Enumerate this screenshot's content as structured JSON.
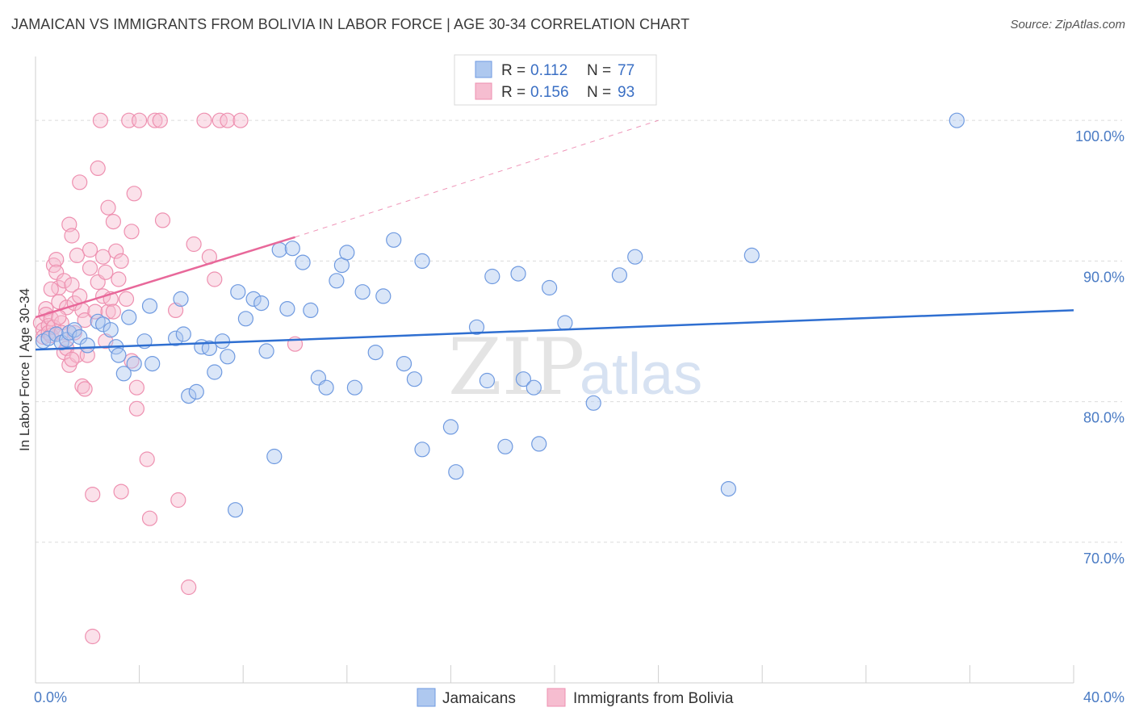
{
  "title": "JAMAICAN VS IMMIGRANTS FROM BOLIVIA IN LABOR FORCE | AGE 30-34 CORRELATION CHART",
  "source": "Source: ZipAtlas.com",
  "colors": {
    "blue_fill": "#aec8ef",
    "blue_stroke": "#6f9ae0",
    "blue_line": "#2f6fd1",
    "pink_fill": "#f6bdd0",
    "pink_stroke": "#ee90b0",
    "pink_line": "#e8689a",
    "grid": "#dcdcdc",
    "tick_text": "#4a7bc4"
  },
  "legend": {
    "row1": {
      "r_label": "R =",
      "r_value": "0.112",
      "n_label": "N =",
      "n_value": "77"
    },
    "row2": {
      "r_label": "R =",
      "r_value": "0.156",
      "n_label": "N =",
      "n_value": "93"
    }
  },
  "watermark": {
    "zip": "ZIP",
    "atlas": "atlas"
  },
  "chart_data": {
    "type": "scatter",
    "title": "JAMAICAN VS IMMIGRANTS FROM BOLIVIA IN LABOR FORCE | AGE 30-34 CORRELATION CHART",
    "xlabel": "",
    "ylabel": "In Labor Force | Age 30-34",
    "xlim": [
      0,
      40
    ],
    "ylim": [
      60,
      104
    ],
    "x_tick_labels": [
      "0.0%",
      "40.0%"
    ],
    "y_ticks": [
      70,
      80,
      90,
      100
    ],
    "y_tick_labels": [
      "70.0%",
      "80.0%",
      "90.0%",
      "100.0%"
    ],
    "grid": true,
    "legend_position": "top-center",
    "series": [
      {
        "name": "Jamaicans",
        "color": "blue",
        "R": 0.112,
        "N": 77,
        "trend": {
          "x": [
            0,
            40
          ],
          "y": [
            83.7,
            86.5
          ],
          "dashed_extension": false
        },
        "points": [
          [
            0.3,
            84.3
          ],
          [
            0.5,
            84.5
          ],
          [
            0.8,
            84.8
          ],
          [
            1.0,
            84.2
          ],
          [
            1.2,
            84.4
          ],
          [
            1.3,
            84.9
          ],
          [
            1.5,
            85.1
          ],
          [
            1.7,
            84.6
          ],
          [
            2.0,
            84.0
          ],
          [
            2.4,
            85.7
          ],
          [
            2.6,
            85.5
          ],
          [
            2.9,
            85.1
          ],
          [
            3.1,
            83.9
          ],
          [
            3.2,
            83.3
          ],
          [
            3.4,
            82.0
          ],
          [
            3.6,
            86.0
          ],
          [
            3.8,
            82.7
          ],
          [
            4.2,
            84.3
          ],
          [
            4.4,
            86.8
          ],
          [
            4.5,
            82.7
          ],
          [
            5.4,
            84.5
          ],
          [
            5.6,
            87.3
          ],
          [
            5.7,
            84.8
          ],
          [
            5.9,
            80.4
          ],
          [
            6.2,
            80.7
          ],
          [
            6.4,
            83.9
          ],
          [
            6.7,
            83.8
          ],
          [
            6.9,
            82.1
          ],
          [
            7.2,
            84.3
          ],
          [
            7.4,
            83.2
          ],
          [
            7.7,
            72.3
          ],
          [
            7.8,
            87.8
          ],
          [
            8.1,
            85.9
          ],
          [
            8.4,
            87.3
          ],
          [
            8.7,
            87.0
          ],
          [
            8.9,
            83.6
          ],
          [
            9.2,
            76.1
          ],
          [
            9.4,
            90.8
          ],
          [
            9.7,
            86.6
          ],
          [
            9.9,
            90.9
          ],
          [
            10.3,
            89.9
          ],
          [
            10.6,
            86.5
          ],
          [
            10.9,
            81.7
          ],
          [
            11.2,
            81.0
          ],
          [
            11.6,
            88.6
          ],
          [
            11.8,
            89.7
          ],
          [
            12.0,
            90.6
          ],
          [
            12.3,
            81.0
          ],
          [
            12.6,
            87.8
          ],
          [
            13.1,
            83.5
          ],
          [
            13.4,
            87.5
          ],
          [
            13.8,
            91.5
          ],
          [
            14.2,
            82.7
          ],
          [
            14.6,
            81.6
          ],
          [
            14.9,
            76.6
          ],
          [
            14.9,
            90.0
          ],
          [
            16.0,
            78.2
          ],
          [
            16.2,
            75.0
          ],
          [
            17.0,
            85.3
          ],
          [
            17.4,
            81.5
          ],
          [
            17.6,
            88.9
          ],
          [
            18.1,
            76.8
          ],
          [
            18.6,
            89.1
          ],
          [
            18.8,
            81.6
          ],
          [
            19.2,
            81.0
          ],
          [
            19.4,
            77.0
          ],
          [
            19.8,
            88.1
          ],
          [
            20.4,
            85.6
          ],
          [
            21.5,
            79.9
          ],
          [
            22.5,
            89.0
          ],
          [
            23.1,
            90.3
          ],
          [
            26.7,
            73.8
          ],
          [
            27.6,
            90.4
          ],
          [
            35.5,
            100.0
          ]
        ]
      },
      {
        "name": "Immigrants from Bolivia",
        "color": "pink",
        "R": 0.156,
        "N": 93,
        "trend": {
          "x": [
            0,
            10
          ],
          "y": [
            86.0,
            91.7
          ],
          "dashed_extension": true,
          "dashed_to": [
            24,
            100.0
          ]
        },
        "points": [
          [
            0.2,
            85.6
          ],
          [
            0.3,
            85.1
          ],
          [
            0.3,
            84.6
          ],
          [
            0.4,
            86.6
          ],
          [
            0.4,
            86.2
          ],
          [
            0.5,
            85.4
          ],
          [
            0.5,
            84.9
          ],
          [
            0.6,
            85.9
          ],
          [
            0.6,
            84.7
          ],
          [
            0.7,
            85.3
          ],
          [
            0.7,
            89.7
          ],
          [
            0.8,
            90.1
          ],
          [
            0.8,
            89.2
          ],
          [
            0.9,
            88.1
          ],
          [
            0.9,
            87.1
          ],
          [
            1.0,
            85.6
          ],
          [
            1.0,
            84.9
          ],
          [
            1.1,
            88.6
          ],
          [
            1.1,
            83.5
          ],
          [
            1.2,
            86.7
          ],
          [
            1.2,
            83.8
          ],
          [
            1.3,
            82.6
          ],
          [
            1.3,
            92.6
          ],
          [
            1.4,
            91.8
          ],
          [
            1.4,
            88.3
          ],
          [
            1.5,
            87.0
          ],
          [
            1.5,
            84.9
          ],
          [
            1.6,
            83.3
          ],
          [
            1.6,
            90.4
          ],
          [
            1.7,
            95.6
          ],
          [
            1.7,
            87.5
          ],
          [
            1.8,
            86.5
          ],
          [
            1.8,
            81.1
          ],
          [
            1.9,
            85.8
          ],
          [
            1.9,
            80.9
          ],
          [
            2.0,
            83.3
          ],
          [
            2.1,
            90.8
          ],
          [
            2.1,
            89.5
          ],
          [
            2.2,
            73.4
          ],
          [
            2.3,
            86.4
          ],
          [
            2.4,
            96.6
          ],
          [
            2.4,
            88.5
          ],
          [
            2.5,
            100.0
          ],
          [
            2.6,
            87.5
          ],
          [
            2.6,
            90.3
          ],
          [
            2.7,
            84.3
          ],
          [
            2.7,
            89.2
          ],
          [
            2.8,
            93.8
          ],
          [
            2.8,
            86.4
          ],
          [
            2.9,
            87.3
          ],
          [
            3.0,
            92.8
          ],
          [
            3.0,
            86.4
          ],
          [
            3.1,
            90.7
          ],
          [
            3.2,
            88.7
          ],
          [
            3.3,
            90.0
          ],
          [
            3.3,
            73.6
          ],
          [
            3.5,
            87.3
          ],
          [
            3.6,
            100.0
          ],
          [
            3.7,
            92.1
          ],
          [
            3.7,
            82.9
          ],
          [
            3.8,
            94.8
          ],
          [
            3.9,
            81.0
          ],
          [
            3.9,
            79.5
          ],
          [
            4.0,
            100.0
          ],
          [
            4.3,
            75.9
          ],
          [
            4.4,
            71.7
          ],
          [
            4.6,
            100.0
          ],
          [
            4.8,
            100.0
          ],
          [
            4.9,
            92.9
          ],
          [
            5.4,
            86.5
          ],
          [
            5.5,
            73.0
          ],
          [
            5.9,
            66.8
          ],
          [
            6.1,
            91.2
          ],
          [
            6.5,
            100.0
          ],
          [
            6.7,
            90.3
          ],
          [
            6.9,
            88.7
          ],
          [
            7.1,
            100.0
          ],
          [
            7.4,
            100.0
          ],
          [
            7.9,
            100.0
          ],
          [
            10.0,
            84.1
          ],
          [
            2.2,
            63.3
          ],
          [
            1.4,
            83.0
          ],
          [
            0.9,
            86.0
          ],
          [
            0.6,
            88.0
          ]
        ]
      }
    ]
  },
  "bottom_legend": {
    "item1": "Jamaicans",
    "item2": "Immigrants from Bolivia"
  }
}
